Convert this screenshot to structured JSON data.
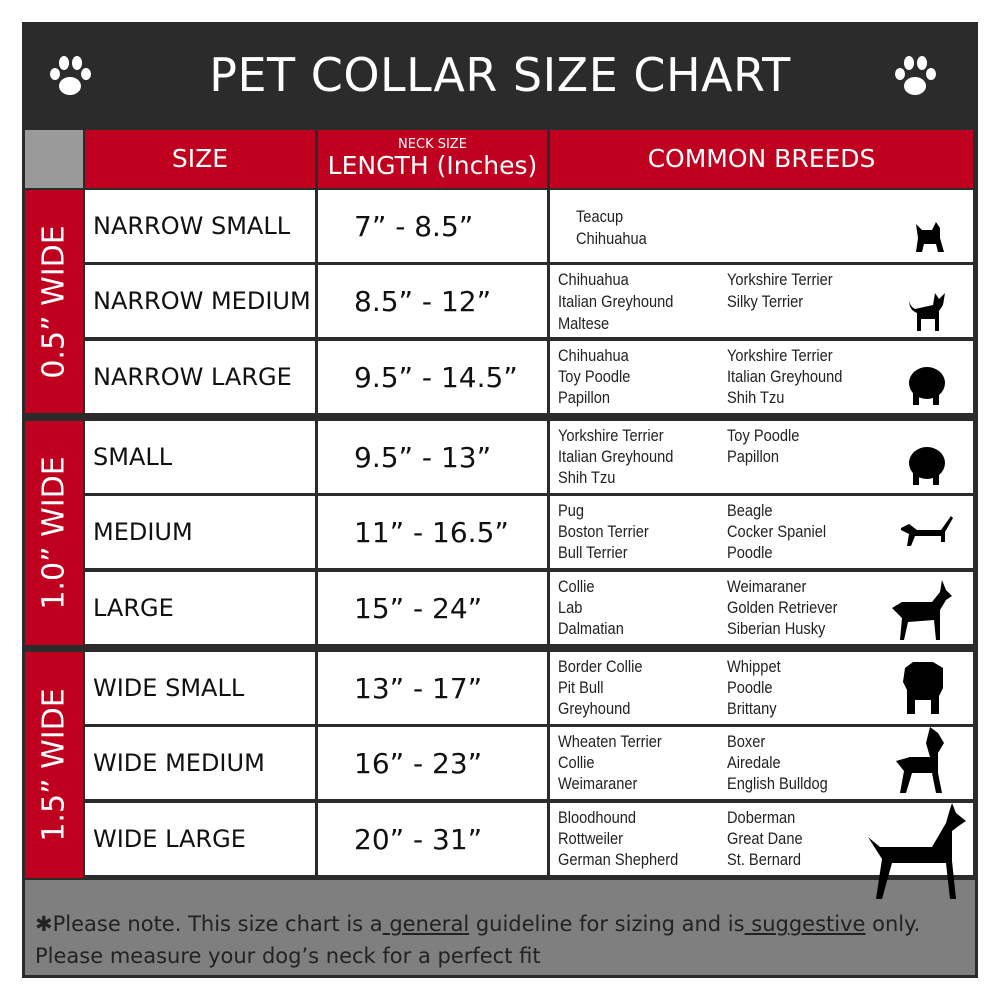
{
  "title": "PET COLLAR SIZE CHART",
  "header": {
    "size": "SIZE",
    "neck_size": "NECK SIZE",
    "length": "LENGTH (Inches)",
    "breeds": "COMMON BREEDS"
  },
  "groups": [
    {
      "label": "0.5” WIDE"
    },
    {
      "label": "1.0” WIDE"
    },
    {
      "label": "1.5” WIDE"
    }
  ],
  "rows": [
    {
      "size": "NARROW SMALL",
      "length": "7” - 8.5”",
      "col1": [
        "Teacup",
        "Chihuahua"
      ],
      "col2": [],
      "icon": "yorkie-silhouette-icon"
    },
    {
      "size": "NARROW MEDIUM",
      "length": "8.5” - 12”",
      "col1": [
        "Chihuahua",
        "Italian Greyhound",
        "Maltese"
      ],
      "col2": [
        "Yorkshire Terrier",
        "Silky Terrier"
      ],
      "icon": "chihuahua-silhouette-icon"
    },
    {
      "size": "NARROW LARGE",
      "length": "9.5” - 14.5”",
      "col1": [
        "Chihuahua",
        "Toy Poodle",
        "Papillon"
      ],
      "col2": [
        "Yorkshire Terrier",
        "Italian Greyhound",
        "Shih Tzu"
      ],
      "icon": "pomeranian-silhouette-icon"
    },
    {
      "size": "SMALL",
      "length": "9.5” - 13”",
      "col1": [
        "Yorkshire Terrier",
        "Italian Greyhound",
        "Shih Tzu"
      ],
      "col2": [
        "Toy Poodle",
        "Papillon"
      ],
      "icon": "pomeranian-silhouette-icon"
    },
    {
      "size": "MEDIUM",
      "length": "11” - 16.5”",
      "col1": [
        "Pug",
        "Boston Terrier",
        "Bull Terrier"
      ],
      "col2": [
        "Beagle",
        "Cocker Spaniel",
        "Poodle"
      ],
      "icon": "dachshund-silhouette-icon"
    },
    {
      "size": "LARGE",
      "length": "15” - 24”",
      "col1": [
        "Collie",
        "Lab",
        "Dalmatian"
      ],
      "col2": [
        "Weimaraner",
        "Golden Retriever",
        "Siberian Husky"
      ],
      "icon": "shepherd-silhouette-icon"
    },
    {
      "size": "WIDE SMALL",
      "length": "13” - 17”",
      "col1": [
        "Border Collie",
        "Pit Bull",
        "Greyhound"
      ],
      "col2": [
        "Whippet",
        "Poodle",
        "Brittany"
      ],
      "icon": "bulldog-silhouette-icon"
    },
    {
      "size": "WIDE MEDIUM",
      "length": "16” - 23”",
      "col1": [
        "Wheaten Terrier",
        "Collie",
        "Weimaraner"
      ],
      "col2": [
        "Boxer",
        "Airedale",
        "English Bulldog"
      ],
      "icon": "pitbull-silhouette-icon"
    },
    {
      "size": "WIDE LARGE",
      "length": "20” - 31”",
      "col1": [
        "Bloodhound",
        "Rottweiler",
        "German Shepherd"
      ],
      "col2": [
        "Doberman",
        "Great Dane",
        "St. Bernard"
      ],
      "icon": "doberman-silhouette-icon"
    }
  ],
  "footer": {
    "p1": "✱Please note. This size chart is a",
    "u1": " general",
    "p2": " guideline for sizing and is",
    "u2": " suggestive",
    "p3": " only.",
    "line2": "Please measure your dog’s neck for a perfect fit"
  },
  "colors": {
    "header_red": "#c0001f",
    "title_bg": "#2b2b2b",
    "footer_gray": "#7f7f7f"
  }
}
